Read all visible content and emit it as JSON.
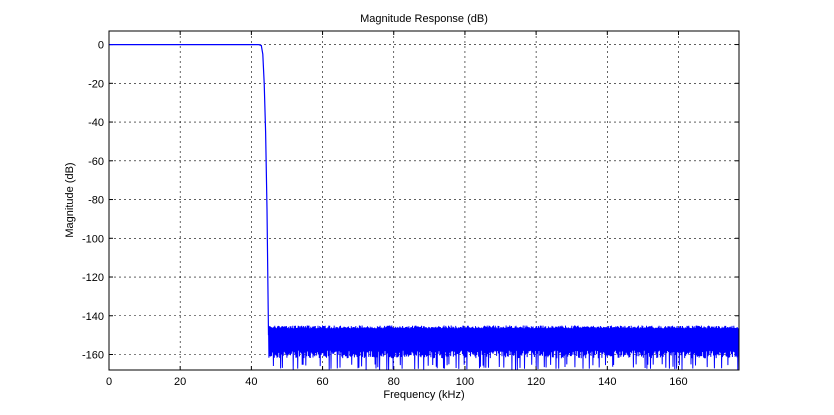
{
  "chart_data": {
    "type": "line",
    "title": "Magnitude Response (dB)",
    "xlabel": "Frequency (kHz)",
    "ylabel": "Magnitude (dB)",
    "xlim": [
      0,
      177
    ],
    "ylim": [
      -168,
      7
    ],
    "xticks": [
      0,
      20,
      40,
      60,
      80,
      100,
      120,
      140,
      160
    ],
    "yticks": [
      0,
      -20,
      -40,
      -60,
      -80,
      -100,
      -120,
      -140,
      -160
    ],
    "grid": true,
    "line_color": "#0000ff",
    "passband": {
      "from": 0,
      "to": 42,
      "level": 0
    },
    "transition": [
      [
        0,
        0
      ],
      [
        42,
        0
      ],
      [
        42.8,
        -0.5
      ],
      [
        43.2,
        -5
      ],
      [
        43.6,
        -20
      ],
      [
        44.0,
        -45
      ],
      [
        44.4,
        -85
      ],
      [
        44.8,
        -150
      ]
    ],
    "stopband": {
      "from": 44.8,
      "to": 177,
      "top": -145,
      "bottom_min": -168,
      "bottom_typical": -158
    }
  }
}
